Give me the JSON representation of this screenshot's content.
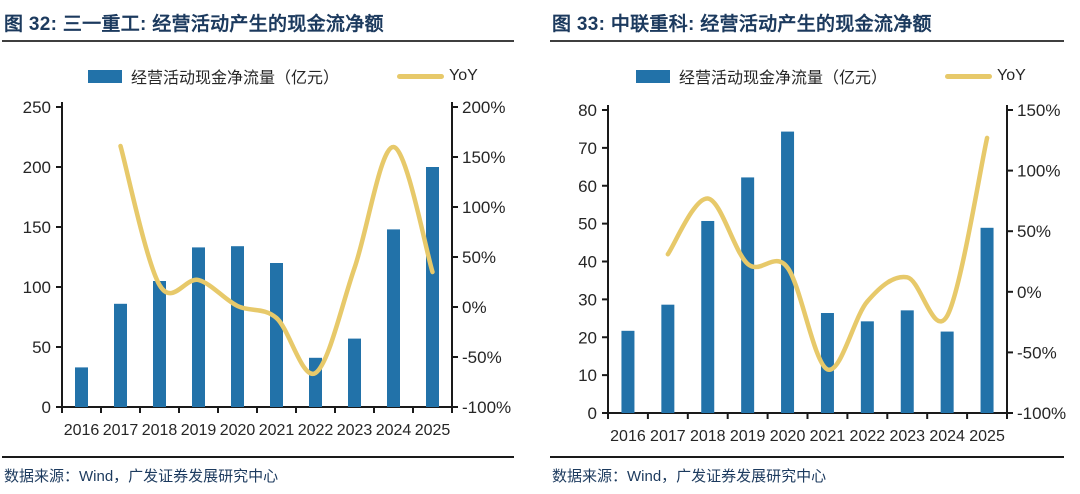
{
  "colors": {
    "bar": "#2272A9",
    "line": "#E7C96A",
    "title": "#1C3A5E",
    "axis": "#1a1a1a",
    "tick_text": "#262626"
  },
  "panels": [
    {
      "title": "图 32:  三一重工: 经营活动产生的现金流净额",
      "legend": {
        "bar": "经营活动现金净流量（亿元）",
        "line": "YoY"
      },
      "source": "数据来源：Wind，广发证券发展研究中心",
      "chart_data": {
        "type": "combo",
        "title": "三一重工: 经营活动产生的现金流净额",
        "categories": [
          "2016",
          "2017",
          "2018",
          "2019",
          "2020",
          "2021",
          "2022",
          "2023",
          "2024",
          "2025"
        ],
        "series": [
          {
            "name": "经营活动现金净流量（亿元）",
            "type": "bar",
            "axis": "left",
            "values": [
              33,
              86,
              105,
              133,
              134,
              120,
              41,
              57,
              148,
              200
            ]
          },
          {
            "name": "YoY",
            "type": "line",
            "axis": "right",
            "unit": "%",
            "values": [
              null,
              161,
              22,
              27,
              1,
              -11,
              -66,
              39,
              160,
              35
            ]
          }
        ],
        "left_axis": {
          "min": 0,
          "max": 250,
          "step": 50
        },
        "right_axis": {
          "min": -100,
          "max": 200,
          "step": 50,
          "suffix": "%"
        },
        "grid": false,
        "legend_position": "top"
      }
    },
    {
      "title": "图 33:  中联重科: 经营活动产生的现金流净额",
      "legend": {
        "bar": "经营活动现金净流量（亿元）",
        "line": "YoY"
      },
      "source": "数据来源：Wind，广发证券发展研究中心",
      "chart_data": {
        "type": "combo",
        "title": "中联重科: 经营活动产生的现金流净额",
        "categories": [
          "2016",
          "2017",
          "2018",
          "2019",
          "2020",
          "2021",
          "2022",
          "2023",
          "2024",
          "2025"
        ],
        "series": [
          {
            "name": "经营活动现金净流量（亿元）",
            "type": "bar",
            "axis": "left",
            "values": [
              21.7,
              28.6,
              50.7,
              62.2,
              74.3,
              26.4,
              24.2,
              27.1,
              21.5,
              48.9
            ]
          },
          {
            "name": "YoY",
            "type": "line",
            "axis": "right",
            "unit": "%",
            "values": [
              null,
              31,
              77,
              23,
              20,
              -64,
              -8,
              12,
              -20,
              127
            ]
          }
        ],
        "left_axis": {
          "min": 0,
          "max": 80,
          "step": 10
        },
        "right_axis": {
          "min": -100,
          "max": 150,
          "step": 50,
          "suffix": "%"
        },
        "grid": false,
        "legend_position": "top"
      }
    }
  ]
}
